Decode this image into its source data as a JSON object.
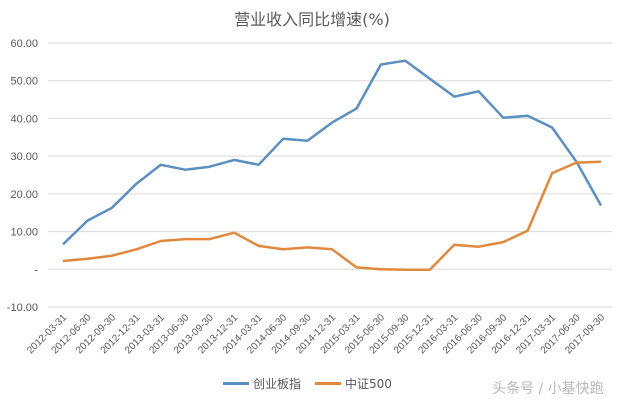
{
  "chart_data": {
    "type": "line",
    "title": "营业收入同比增速(%)",
    "xlabel": "",
    "ylabel": "",
    "ylim": [
      -10,
      60
    ],
    "yticks": [
      "60.00",
      "50.00",
      "40.00",
      "30.00",
      "20.00",
      "10.00",
      "-",
      "-10.00"
    ],
    "grid": true,
    "legend_position": "bottom",
    "categories": [
      "2012-03-31",
      "2012-06-30",
      "2012-09-30",
      "2012-12-31",
      "2013-03-31",
      "2013-06-30",
      "2013-09-30",
      "2013-12-31",
      "2014-03-31",
      "2014-06-30",
      "2014-09-30",
      "2014-12-31",
      "2015-03-31",
      "2015-06-30",
      "2015-09-30",
      "2015-12-31",
      "2016-03-31",
      "2016-06-30",
      "2016-09-30",
      "2016-12-31",
      "2017-03-31",
      "2017-06-30",
      "2017-09-30"
    ],
    "series": [
      {
        "name": "创业板指",
        "color": "#5b8fbf",
        "values": [
          6.6,
          12.9,
          16.3,
          22.7,
          27.7,
          26.4,
          27.2,
          29.0,
          27.7,
          34.6,
          34.1,
          38.9,
          42.6,
          54.3,
          55.3,
          50.5,
          45.8,
          47.2,
          40.2,
          40.7,
          37.6,
          28.5,
          16.9
        ]
      },
      {
        "name": "中证500",
        "color": "#e0883e",
        "values": [
          2.2,
          2.8,
          3.6,
          5.3,
          7.5,
          8.0,
          8.0,
          9.7,
          6.2,
          5.3,
          5.8,
          5.3,
          0.5,
          0.0,
          -0.1,
          -0.1,
          6.5,
          6.0,
          7.2,
          10.2,
          25.5,
          28.3,
          28.5
        ]
      }
    ]
  },
  "watermark": "头条号 / 小基快跑"
}
